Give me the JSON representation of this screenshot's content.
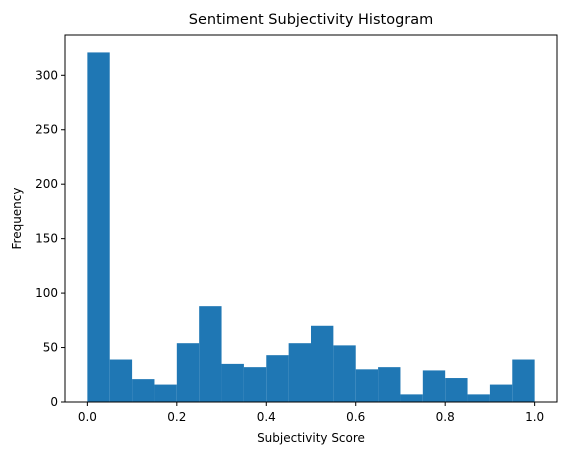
{
  "chart_data": {
    "type": "bar",
    "title": "Sentiment Subjectivity Histogram",
    "xlabel": "Subjectivity Score",
    "ylabel": "Frequency",
    "xlim": [
      -0.05,
      1.05
    ],
    "ylim": [
      0,
      337
    ],
    "bin_edges": [
      0.0,
      0.05,
      0.1,
      0.15,
      0.2,
      0.25,
      0.3,
      0.35,
      0.4,
      0.45,
      0.5,
      0.55,
      0.6,
      0.65,
      0.7,
      0.75,
      0.8,
      0.85,
      0.9,
      0.95,
      1.0
    ],
    "values": [
      321,
      39,
      21,
      16,
      54,
      88,
      35,
      32,
      43,
      54,
      70,
      52,
      30,
      32,
      7,
      29,
      22,
      7,
      16,
      39
    ],
    "bar_color": "#1f77b4",
    "x_ticks": [
      0.0,
      0.2,
      0.4,
      0.6,
      0.8,
      1.0
    ],
    "x_tick_labels": [
      "0.0",
      "0.2",
      "0.4",
      "0.6",
      "0.8",
      "1.0"
    ],
    "y_ticks": [
      0,
      50,
      100,
      150,
      200,
      250,
      300
    ],
    "y_tick_labels": [
      "0",
      "50",
      "100",
      "150",
      "200",
      "250",
      "300"
    ],
    "grid": false,
    "legend": "none"
  }
}
